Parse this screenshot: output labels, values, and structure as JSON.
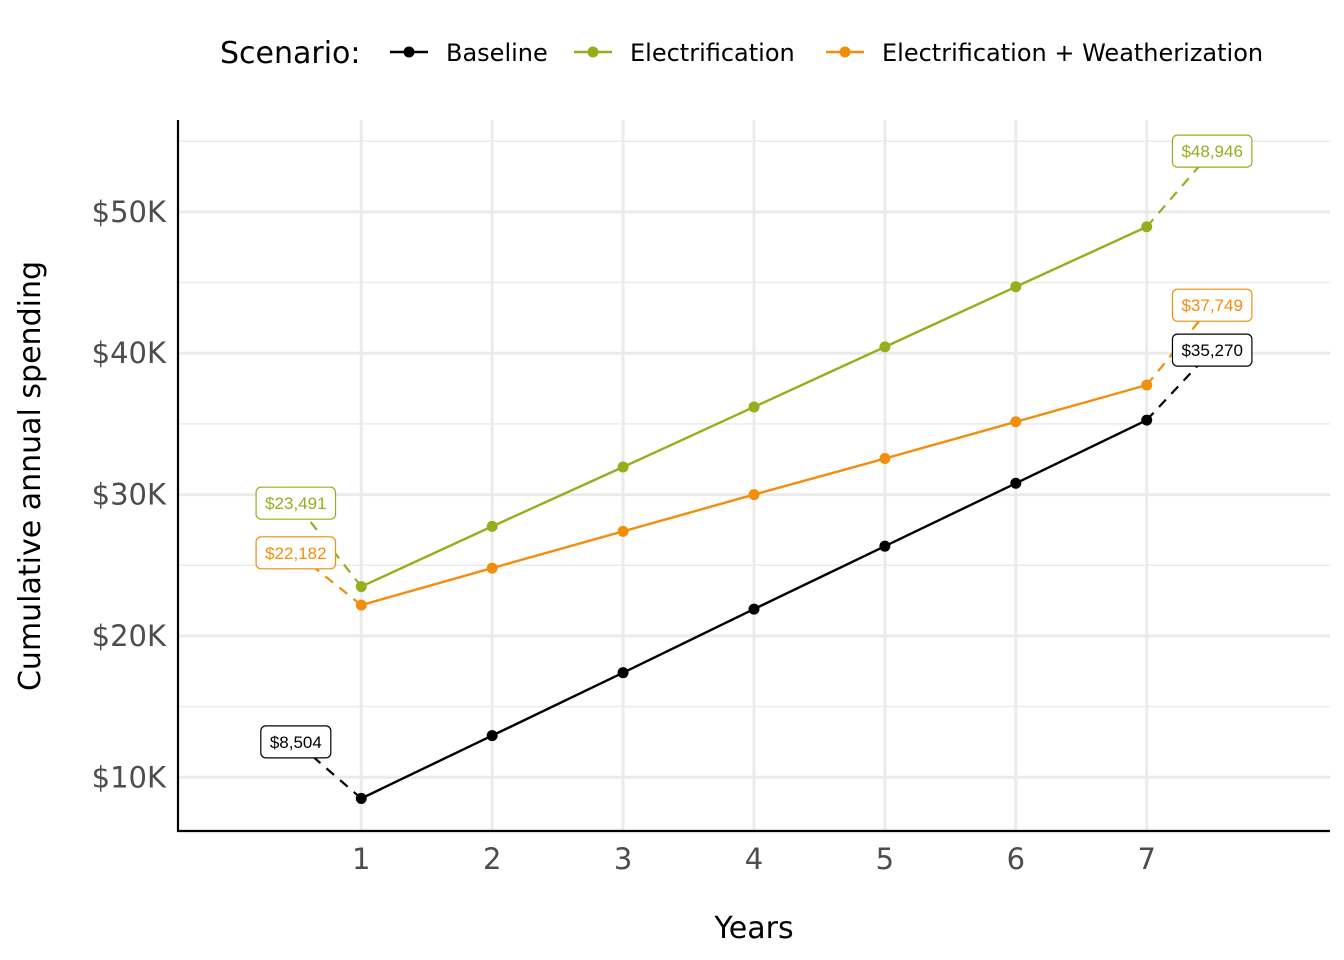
{
  "chart_data": {
    "type": "line",
    "title": "",
    "xlabel": "Years",
    "ylabel": "Cumulative annual spending",
    "x": [
      1,
      2,
      3,
      4,
      5,
      6,
      7
    ],
    "x_ticks": [
      "1",
      "2",
      "3",
      "4",
      "5",
      "6",
      "7"
    ],
    "xlim": [
      -0.4,
      8.4
    ],
    "ylim": [
      6200,
      56500
    ],
    "y_ticks": [
      10000,
      20000,
      30000,
      40000,
      50000
    ],
    "y_tick_labels": [
      "$10K",
      "$20K",
      "$30K",
      "$40K",
      "$50K"
    ],
    "grid": true,
    "legend": {
      "title": "Scenario:",
      "placement": "top"
    },
    "series": [
      {
        "name": "Baseline",
        "color": "#000000",
        "values": [
          8504,
          12950,
          17400,
          21900,
          26350,
          30800,
          35270
        ],
        "callouts": [
          {
            "label": "$8,504",
            "x": 1,
            "y": 8504,
            "side": "left"
          },
          {
            "label": "$35,270",
            "x": 7,
            "y": 35270,
            "side": "right"
          }
        ]
      },
      {
        "name": "Electrification",
        "color": "#98ad1b",
        "values": [
          23491,
          27750,
          31950,
          36200,
          40450,
          44700,
          48946
        ],
        "callouts": [
          {
            "label": "$23,491",
            "x": 1,
            "y": 23491,
            "side": "left"
          },
          {
            "label": "$48,946",
            "x": 7,
            "y": 48946,
            "side": "right"
          }
        ]
      },
      {
        "name": "Electrification + Weatherization",
        "color": "#f28e0c",
        "values": [
          22182,
          24800,
          27400,
          30000,
          32550,
          35150,
          37749
        ],
        "callouts": [
          {
            "label": "$22,182",
            "x": 1,
            "y": 22182,
            "side": "left"
          },
          {
            "label": "$37,749",
            "x": 7,
            "y": 37749,
            "side": "right"
          }
        ]
      }
    ]
  }
}
